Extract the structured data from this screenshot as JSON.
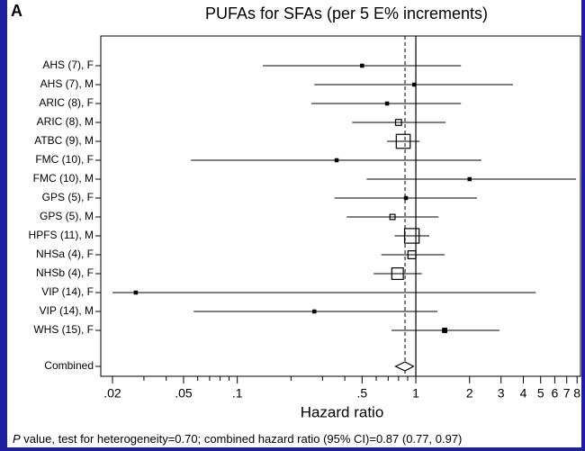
{
  "chart_data": {
    "type": "forest",
    "panel_label": "A",
    "title": "PUFAs for SFAs (per 5 E% increments)",
    "xlabel": "Hazard ratio",
    "footnote": {
      "italic": "P",
      "text": " value, test for heterogeneity=0.70; combined hazard ratio (95% CI)=0.87 (0.77, 0.97)"
    },
    "categories": [
      "AHS (7), F",
      "AHS (7), M",
      "ARIC (8), F",
      "ARIC (8), M",
      "ATBC (9), M",
      "FMC (10), F",
      "FMC (10), M",
      "GPS (5), F",
      "GPS (5), M",
      "HPFS (11), M",
      "NHSa (4), F",
      "NHSb (4), F",
      "VIP (14), F",
      "VIP (14), M",
      "WHS (15), F"
    ],
    "estimates": [
      0.5,
      0.98,
      0.69,
      0.8,
      0.85,
      0.36,
      2.0,
      0.88,
      0.74,
      0.95,
      0.95,
      0.79,
      0.027,
      0.27,
      1.45
    ],
    "lower": [
      0.139,
      0.27,
      0.26,
      0.44,
      0.69,
      0.055,
      0.53,
      0.35,
      0.41,
      0.76,
      0.64,
      0.58,
      0.02,
      0.057,
      0.73
    ],
    "upper": [
      1.79,
      3.5,
      1.79,
      1.47,
      1.05,
      2.33,
      7.9,
      2.2,
      1.34,
      1.19,
      1.45,
      1.08,
      4.7,
      1.32,
      2.94
    ],
    "weights": [
      1,
      1,
      1,
      4,
      22,
      1,
      1,
      1,
      3,
      24,
      7,
      15,
      1,
      1,
      2
    ],
    "combined": {
      "label": "Combined",
      "value": 0.87,
      "lower": 0.77,
      "upper": 0.97
    },
    "reference_line": 1,
    "log_x": true,
    "xlim": [
      0.0172,
      8.36
    ],
    "xticks": [
      {
        "value": 0.02,
        "label": ".02"
      },
      {
        "value": 0.05,
        "label": ".05"
      },
      {
        "value": 0.1,
        "label": ".1"
      },
      {
        "value": 0.5,
        "label": ".5"
      },
      1,
      2,
      3,
      4,
      5,
      6,
      7,
      8
    ],
    "xminorticks": [
      0.03,
      0.04,
      0.06,
      0.07,
      0.08,
      0.09,
      0.2,
      0.3,
      0.4,
      0.6,
      0.7,
      0.8,
      0.9
    ]
  }
}
